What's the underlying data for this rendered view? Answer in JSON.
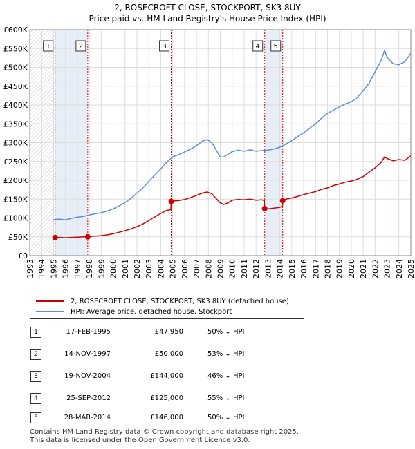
{
  "title_line1": "2, ROSECROFT CLOSE, STOCKPORT, SK3 8UY",
  "title_line2": "Price paid vs. HM Land Registry's House Price Index (HPI)",
  "legend": {
    "property": "2, ROSECROFT CLOSE, STOCKPORT, SK3 8UY (detached house)",
    "hpi": "HPI: Average price, detached house, Stockport"
  },
  "colors": {
    "property": "#cc0000",
    "hpi": "#5b8fcc",
    "shade": "#e8eef8"
  },
  "sales": [
    {
      "num": "1",
      "date": "17-FEB-1995",
      "price": "£47,950",
      "pct": "50% ↓ HPI"
    },
    {
      "num": "2",
      "date": "14-NOV-1997",
      "price": "£50,000",
      "pct": "53% ↓ HPI"
    },
    {
      "num": "3",
      "date": "19-NOV-2004",
      "price": "£144,000",
      "pct": "46% ↓ HPI"
    },
    {
      "num": "4",
      "date": "25-SEP-2012",
      "price": "£125,000",
      "pct": "55% ↓ HPI"
    },
    {
      "num": "5",
      "date": "28-MAR-2014",
      "price": "£146,000",
      "pct": "50% ↓ HPI"
    }
  ],
  "footer": {
    "line1": "Contains HM Land Registry data © Crown copyright and database right 2025.",
    "line2": "This data is licensed under the Open Government Licence v3.0."
  },
  "chart_data": {
    "type": "line",
    "xlim": [
      1993,
      2025
    ],
    "ylim": [
      0,
      600000
    ],
    "x_ticks": [
      "1993",
      "1994",
      "1995",
      "1996",
      "1997",
      "1998",
      "1999",
      "2000",
      "2001",
      "2002",
      "2003",
      "2004",
      "2005",
      "2006",
      "2007",
      "2008",
      "2009",
      "2010",
      "2011",
      "2012",
      "2013",
      "2014",
      "2015",
      "2016",
      "2017",
      "2018",
      "2019",
      "2020",
      "2021",
      "2022",
      "2023",
      "2024",
      "2025"
    ],
    "y_ticks": [
      {
        "value": 0,
        "label": "£0"
      },
      {
        "value": 50000,
        "label": "£50K"
      },
      {
        "value": 100000,
        "label": "£100K"
      },
      {
        "value": 150000,
        "label": "£150K"
      },
      {
        "value": 200000,
        "label": "£200K"
      },
      {
        "value": 250000,
        "label": "£250K"
      },
      {
        "value": 300000,
        "label": "£300K"
      },
      {
        "value": 350000,
        "label": "£350K"
      },
      {
        "value": 400000,
        "label": "£400K"
      },
      {
        "value": 450000,
        "label": "£450K"
      },
      {
        "value": 500000,
        "label": "£500K"
      },
      {
        "value": 550000,
        "label": "£550K"
      },
      {
        "value": 600000,
        "label": "£600K"
      }
    ],
    "grid": true,
    "series": [
      {
        "name": "2, ROSECROFT CLOSE, STOCKPORT, SK3 8UY (detached house)",
        "points": [
          [
            1995.13,
            47950
          ],
          [
            1995.5,
            48500
          ],
          [
            1996.0,
            47500
          ],
          [
            1996.5,
            48500
          ],
          [
            1997.0,
            49000
          ],
          [
            1997.5,
            50000
          ],
          [
            1997.87,
            50000
          ],
          [
            1998.0,
            51000
          ],
          [
            1998.5,
            52000
          ],
          [
            1999.0,
            53000
          ],
          [
            1999.5,
            55000
          ],
          [
            2000.0,
            58000
          ],
          [
            2000.5,
            62000
          ],
          [
            2001.0,
            66000
          ],
          [
            2001.5,
            71000
          ],
          [
            2002.0,
            77000
          ],
          [
            2002.5,
            84000
          ],
          [
            2003.0,
            93000
          ],
          [
            2003.5,
            103000
          ],
          [
            2004.0,
            112000
          ],
          [
            2004.5,
            120000
          ],
          [
            2004.85,
            122000
          ],
          [
            2004.88,
            144000
          ],
          [
            2005.0,
            145000
          ],
          [
            2005.5,
            146000
          ],
          [
            2006.0,
            149000
          ],
          [
            2006.5,
            154000
          ],
          [
            2007.0,
            160000
          ],
          [
            2007.5,
            166000
          ],
          [
            2007.9,
            169000
          ],
          [
            2008.3,
            164000
          ],
          [
            2008.7,
            150000
          ],
          [
            2009.0,
            140000
          ],
          [
            2009.3,
            136000
          ],
          [
            2009.7,
            141000
          ],
          [
            2010.0,
            147000
          ],
          [
            2010.5,
            149000
          ],
          [
            2011.0,
            148000
          ],
          [
            2011.5,
            150000
          ],
          [
            2012.0,
            147000
          ],
          [
            2012.5,
            148000
          ],
          [
            2012.7,
            146000
          ],
          [
            2012.73,
            125000
          ],
          [
            2013.0,
            124000
          ],
          [
            2013.5,
            126000
          ],
          [
            2014.0,
            128000
          ],
          [
            2014.22,
            132000
          ],
          [
            2014.24,
            146000
          ],
          [
            2014.5,
            150000
          ],
          [
            2015.0,
            153000
          ],
          [
            2015.5,
            157000
          ],
          [
            2016.0,
            162000
          ],
          [
            2016.5,
            166000
          ],
          [
            2017.0,
            170000
          ],
          [
            2017.5,
            176000
          ],
          [
            2018.0,
            180000
          ],
          [
            2018.5,
            186000
          ],
          [
            2019.0,
            190000
          ],
          [
            2019.5,
            195000
          ],
          [
            2020.0,
            198000
          ],
          [
            2020.5,
            203000
          ],
          [
            2021.0,
            210000
          ],
          [
            2021.5,
            222000
          ],
          [
            2022.0,
            233000
          ],
          [
            2022.5,
            247000
          ],
          [
            2022.8,
            262000
          ],
          [
            2023.0,
            258000
          ],
          [
            2023.5,
            252000
          ],
          [
            2024.0,
            255000
          ],
          [
            2024.5,
            253000
          ],
          [
            2025.0,
            265000
          ]
        ]
      },
      {
        "name": "HPI: Average price, detached house, Stockport",
        "points": [
          [
            1995.0,
            96000
          ],
          [
            1995.5,
            97000
          ],
          [
            1996.0,
            95000
          ],
          [
            1996.5,
            99000
          ],
          [
            1997.0,
            102000
          ],
          [
            1997.5,
            104000
          ],
          [
            1998.0,
            108000
          ],
          [
            1998.5,
            111000
          ],
          [
            1999.0,
            114000
          ],
          [
            1999.5,
            118000
          ],
          [
            2000.0,
            124000
          ],
          [
            2000.5,
            132000
          ],
          [
            2001.0,
            141000
          ],
          [
            2001.5,
            152000
          ],
          [
            2002.0,
            166000
          ],
          [
            2002.5,
            180000
          ],
          [
            2003.0,
            197000
          ],
          [
            2003.5,
            214000
          ],
          [
            2004.0,
            230000
          ],
          [
            2004.5,
            248000
          ],
          [
            2005.0,
            262000
          ],
          [
            2005.5,
            268000
          ],
          [
            2006.0,
            275000
          ],
          [
            2006.5,
            283000
          ],
          [
            2007.0,
            292000
          ],
          [
            2007.5,
            304000
          ],
          [
            2007.9,
            308000
          ],
          [
            2008.3,
            300000
          ],
          [
            2008.7,
            278000
          ],
          [
            2009.0,
            262000
          ],
          [
            2009.3,
            262000
          ],
          [
            2009.7,
            270000
          ],
          [
            2010.0,
            276000
          ],
          [
            2010.5,
            280000
          ],
          [
            2011.0,
            277000
          ],
          [
            2011.5,
            281000
          ],
          [
            2012.0,
            277000
          ],
          [
            2012.5,
            279000
          ],
          [
            2013.0,
            280000
          ],
          [
            2013.5,
            283000
          ],
          [
            2014.0,
            288000
          ],
          [
            2014.5,
            296000
          ],
          [
            2015.0,
            305000
          ],
          [
            2015.5,
            316000
          ],
          [
            2016.0,
            326000
          ],
          [
            2016.5,
            338000
          ],
          [
            2017.0,
            350000
          ],
          [
            2017.5,
            365000
          ],
          [
            2018.0,
            378000
          ],
          [
            2018.5,
            386000
          ],
          [
            2019.0,
            395000
          ],
          [
            2019.5,
            403000
          ],
          [
            2020.0,
            408000
          ],
          [
            2020.5,
            420000
          ],
          [
            2021.0,
            438000
          ],
          [
            2021.5,
            458000
          ],
          [
            2022.0,
            488000
          ],
          [
            2022.5,
            518000
          ],
          [
            2022.8,
            545000
          ],
          [
            2023.0,
            527000
          ],
          [
            2023.5,
            510000
          ],
          [
            2024.0,
            507000
          ],
          [
            2024.5,
            515000
          ],
          [
            2025.0,
            537000
          ]
        ]
      }
    ],
    "sale_markers": [
      {
        "label": "1",
        "x": 1995.13,
        "y": 47950
      },
      {
        "label": "2",
        "x": 1997.87,
        "y": 50000
      },
      {
        "label": "3",
        "x": 2004.88,
        "y": 144000
      },
      {
        "label": "4",
        "x": 2012.73,
        "y": 125000
      },
      {
        "label": "5",
        "x": 2014.24,
        "y": 146000
      }
    ]
  }
}
